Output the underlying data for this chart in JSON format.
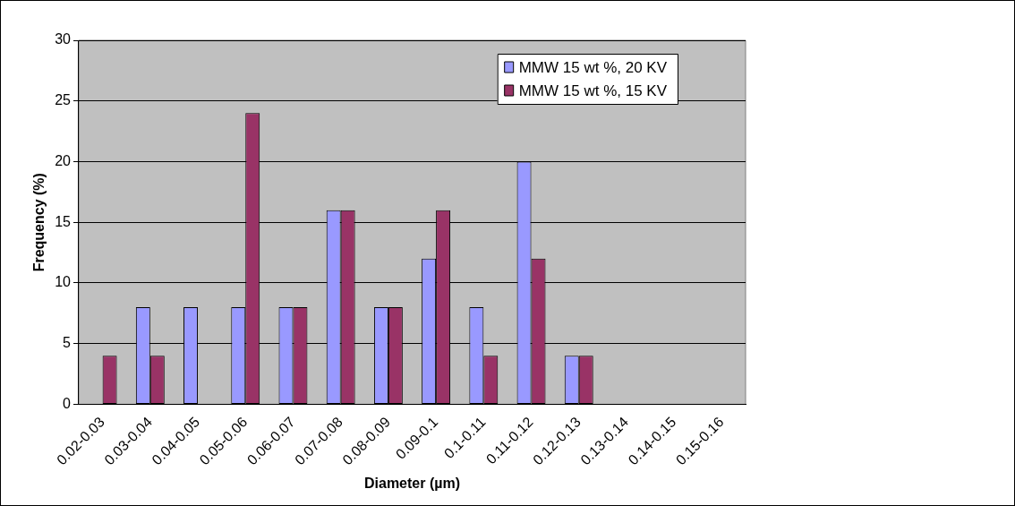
{
  "chart_data": {
    "type": "bar",
    "xlabel": "Diameter (µm)",
    "ylabel": "Frequency (%)",
    "categories": [
      "0.02-0.03",
      "0.03-0.04",
      "0.04-0.05",
      "0.05-0.06",
      "0.06-0.07",
      "0.07-0.08",
      "0.08-0.09",
      "0.09-0.1",
      "0.1-0.11",
      "0.11-0.12",
      "0.12-0.13",
      "0.13-0.14",
      "0.14-0.15",
      "0.15-0.16"
    ],
    "series": [
      {
        "name": "MMW 15 wt %, 20 KV",
        "color": "#9999ff",
        "values": [
          0,
          8,
          8,
          8,
          8,
          16,
          8,
          12,
          8,
          20,
          4,
          0,
          0,
          0
        ]
      },
      {
        "name": "MMW 15 wt %, 15 KV",
        "color": "#993366",
        "values": [
          4,
          4,
          0,
          24,
          8,
          16,
          8,
          16,
          4,
          12,
          4,
          0,
          0,
          0
        ]
      }
    ],
    "ylim": [
      0,
      30
    ],
    "yticks": [
      0,
      5,
      10,
      15,
      20,
      25,
      30
    ],
    "grid": "y",
    "legend": "top right"
  }
}
